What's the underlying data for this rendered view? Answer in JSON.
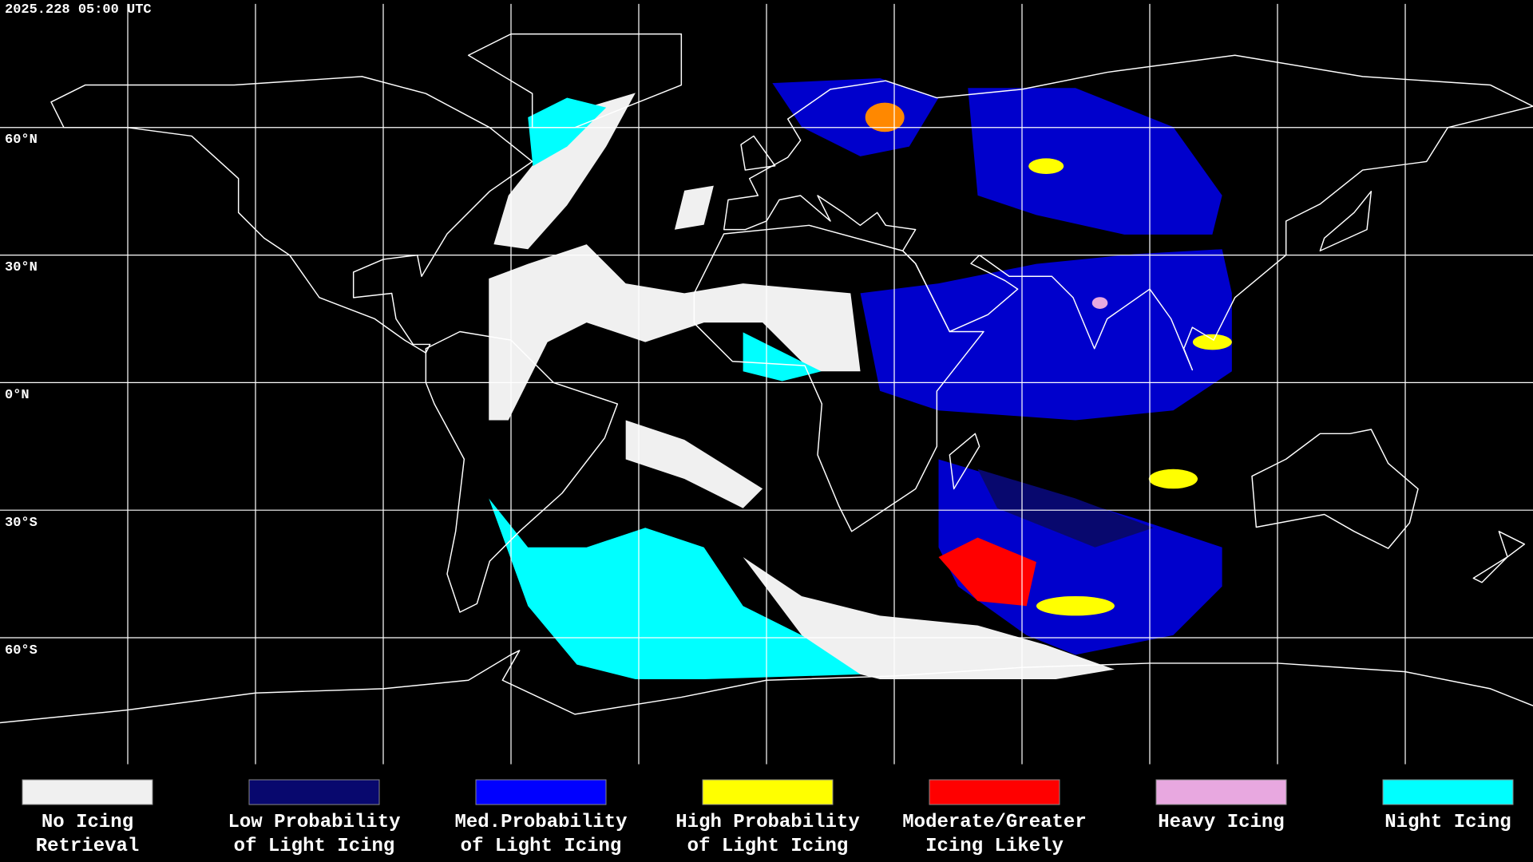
{
  "header": {
    "timestamp": "2025.228 05:00 UTC"
  },
  "grid": {
    "latitude_labels": [
      "60°N",
      "30°N",
      "0°N",
      "30°S",
      "60°S"
    ]
  },
  "legend": {
    "items": [
      {
        "lines": [
          "No Icing",
          "Retrieval"
        ],
        "color": "#f0f0f0"
      },
      {
        "lines": [
          "Low Probability",
          "of Light Icing"
        ],
        "color": "#08086e"
      },
      {
        "lines": [
          "Med.Probability",
          "of Light Icing"
        ],
        "color": "#0000ff"
      },
      {
        "lines": [
          "High Probability",
          "of Light Icing"
        ],
        "color": "#ffff00"
      },
      {
        "lines": [
          "Moderate/Greater",
          "Icing Likely"
        ],
        "color": "#ff0000"
      },
      {
        "lines": [
          "Heavy Icing"
        ],
        "color": "#e8a8e0"
      },
      {
        "lines": [
          "Night Icing"
        ],
        "color": "#00ffff"
      }
    ]
  }
}
